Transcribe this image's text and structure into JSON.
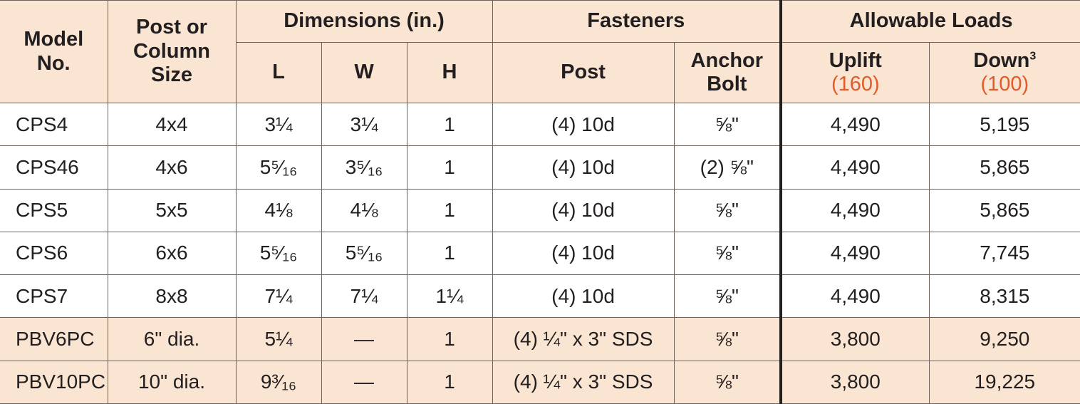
{
  "header": {
    "model_no": "Model\nNo.",
    "post_size": "Post or Column Size",
    "dimensions": "Dimensions (in.)",
    "fasteners": "Fasteners",
    "allowable_loads": "Allowable Loads",
    "dim_l": "L",
    "dim_w": "W",
    "dim_h": "H",
    "fast_post": "Post",
    "fast_anchor": "Anchor Bolt",
    "uplift": "Uplift",
    "uplift_rating": "(160)",
    "down": "Down",
    "down_sup": "3",
    "down_rating": "(100)"
  },
  "rows": [
    {
      "model": "CPS4",
      "size": "4x4",
      "l": "3¼",
      "w": "3¼",
      "h": "1",
      "post": "(4) 10d",
      "anchor": "⅝\"",
      "uplift": "4,490",
      "down": "5,195",
      "shaded": false
    },
    {
      "model": "CPS46",
      "size": "4x6",
      "l": "5⁵⁄₁₆",
      "w": "3⁵⁄₁₆",
      "h": "1",
      "post": "(4) 10d",
      "anchor": "(2) ⅝\"",
      "uplift": "4,490",
      "down": "5,865",
      "shaded": false
    },
    {
      "model": "CPS5",
      "size": "5x5",
      "l": "4⅛",
      "w": "4⅛",
      "h": "1",
      "post": "(4) 10d",
      "anchor": "⅝\"",
      "uplift": "4,490",
      "down": "5,865",
      "shaded": false
    },
    {
      "model": "CPS6",
      "size": "6x6",
      "l": "5⁵⁄₁₆",
      "w": "5⁵⁄₁₆",
      "h": "1",
      "post": "(4) 10d",
      "anchor": "⅝\"",
      "uplift": "4,490",
      "down": "7,745",
      "shaded": false
    },
    {
      "model": "CPS7",
      "size": "8x8",
      "l": "7¼",
      "w": "7¼",
      "h": "1¼",
      "post": "(4) 10d",
      "anchor": "⅝\"",
      "uplift": "4,490",
      "down": "8,315",
      "shaded": false
    },
    {
      "model": "PBV6PC",
      "size": "6\" dia.",
      "l": "5¼",
      "w": "—",
      "h": "1",
      "post": "(4) ¼\" x 3\" SDS",
      "anchor": "⅝\"",
      "uplift": "3,800",
      "down": "9,250",
      "shaded": true
    },
    {
      "model": "PBV10PC",
      "size": "10\" dia.",
      "l": "9³⁄₁₆",
      "w": "—",
      "h": "1",
      "post": "(4) ¼\" x 3\" SDS",
      "anchor": "⅝\"",
      "uplift": "3,800",
      "down": "19,225",
      "shaded": true
    }
  ],
  "colors": {
    "header_bg": "#f9e5d1",
    "rating_text": "#e35b2c",
    "border": "#6e6259"
  }
}
